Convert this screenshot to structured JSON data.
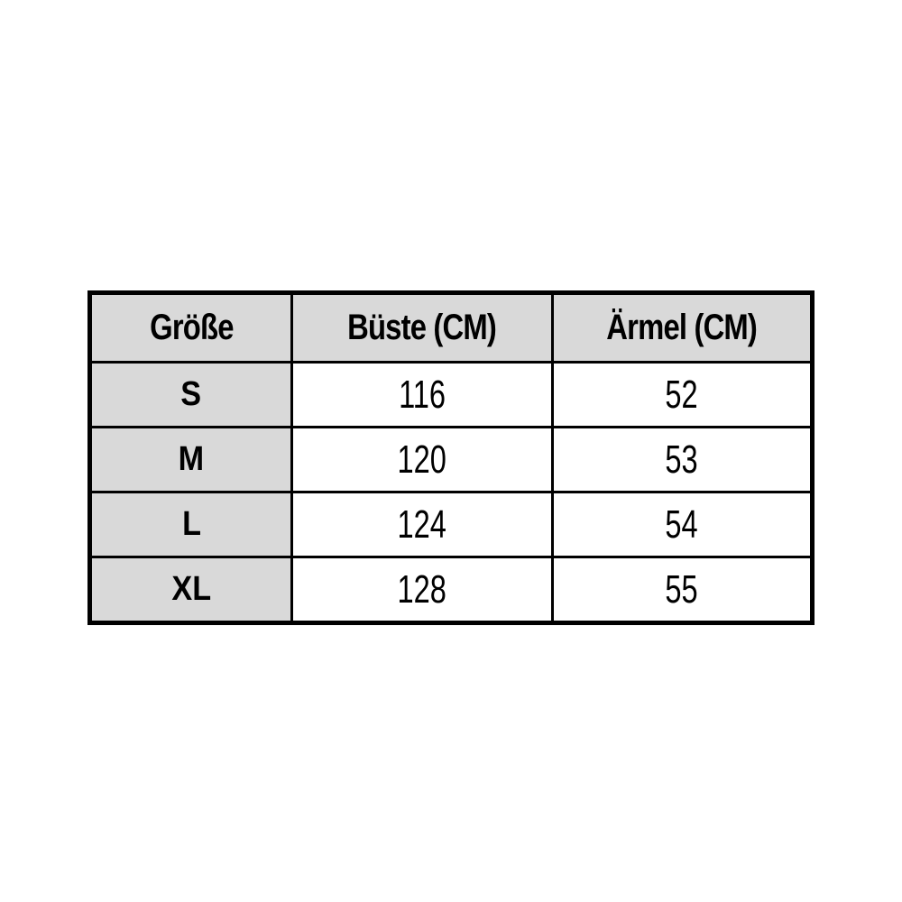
{
  "size_chart": {
    "columns": [
      {
        "label": "Größe"
      },
      {
        "label": "Büste (CM)"
      },
      {
        "label": "Ärmel (CM)"
      }
    ],
    "rows": [
      {
        "size": "S",
        "bust": "116",
        "sleeve": "52"
      },
      {
        "size": "M",
        "bust": "120",
        "sleeve": "53"
      },
      {
        "size": "L",
        "bust": "124",
        "sleeve": "54"
      },
      {
        "size": "XL",
        "bust": "128",
        "sleeve": "55"
      }
    ]
  },
  "colors": {
    "header_bg": "#d9d9d9",
    "size_column_bg": "#d9d9d9",
    "cell_bg": "#ffffff",
    "border": "#000000",
    "text": "#000000",
    "page_bg": "#ffffff"
  },
  "chart_data": {
    "type": "table",
    "title": "",
    "columns": [
      "Größe",
      "Büste (CM)",
      "Ärmel (CM)"
    ],
    "rows": [
      [
        "S",
        116,
        52
      ],
      [
        "M",
        120,
        53
      ],
      [
        "L",
        124,
        54
      ],
      [
        "XL",
        128,
        55
      ]
    ],
    "layout_hints": {
      "header_background": "#d9d9d9",
      "first_column_background": "#d9d9d9",
      "border_color": "#000000",
      "grid": true
    }
  }
}
